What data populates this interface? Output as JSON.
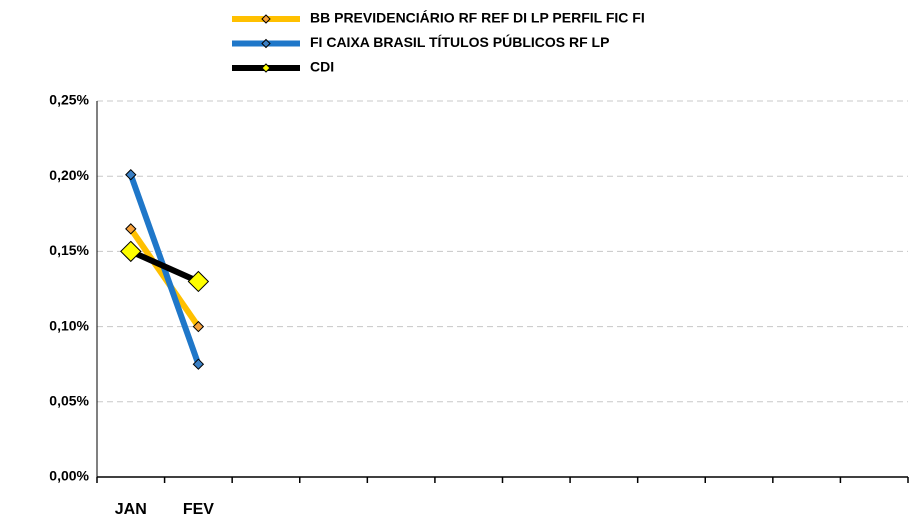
{
  "chart_data": {
    "type": "line",
    "categories": [
      "JAN",
      "FEV",
      null,
      null,
      null,
      null,
      null,
      null,
      null,
      null,
      null,
      null
    ],
    "series": [
      {
        "name": "BB PREVIDENCIÁRIO RF REF DI LP PERFIL FIC FI",
        "color": "#ffc000",
        "marker_color": "#f7a23b",
        "values": [
          0.165,
          0.1,
          null,
          null,
          null,
          null,
          null,
          null,
          null,
          null,
          null,
          null
        ]
      },
      {
        "name": "FI CAIXA BRASIL TÍTULOS PÚBLICOS RF LP",
        "color": "#1f77c9",
        "marker_color": "#3a7fc4",
        "values": [
          0.201,
          0.075,
          null,
          null,
          null,
          null,
          null,
          null,
          null,
          null,
          null,
          null
        ]
      },
      {
        "name": "CDI",
        "color": "#000000",
        "marker_color": "#ffff00",
        "values": [
          0.15,
          0.13,
          null,
          null,
          null,
          null,
          null,
          null,
          null,
          null,
          null,
          null
        ]
      }
    ],
    "ylim": [
      0,
      0.25
    ],
    "yticks": [
      {
        "value": 0,
        "label": "0,00%"
      },
      {
        "value": 0.05,
        "label": "0,05%"
      },
      {
        "value": 0.1,
        "label": "0,10%"
      },
      {
        "value": 0.15,
        "label": "0,15%"
      },
      {
        "value": 0.2,
        "label": "0,20%"
      },
      {
        "value": 0.25,
        "label": "0,25%"
      }
    ],
    "grid": true,
    "legend": "top"
  }
}
